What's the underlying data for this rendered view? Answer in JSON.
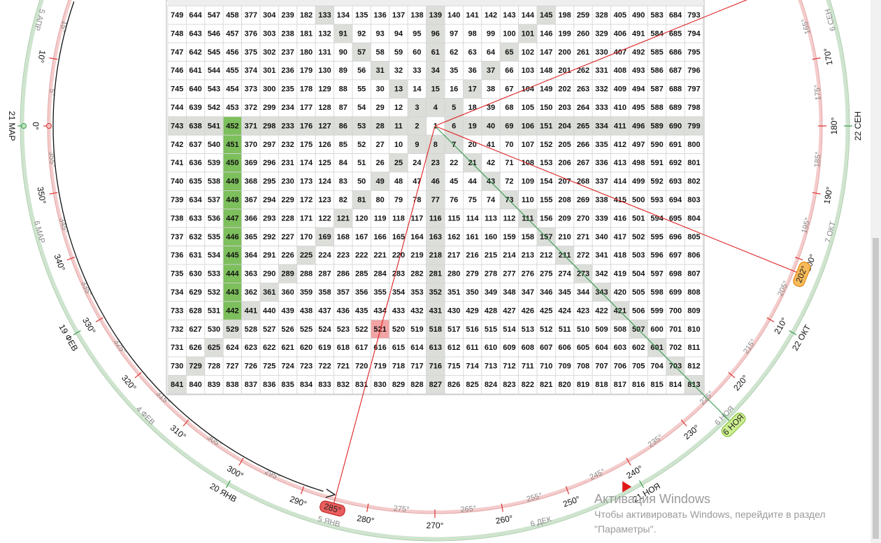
{
  "grid": {
    "rows": [
      [
        749,
        644,
        547,
        458,
        377,
        304,
        239,
        182,
        133,
        134,
        135,
        136,
        137,
        138,
        139,
        140,
        141,
        142,
        143,
        144,
        145,
        198,
        259,
        328,
        405,
        490,
        583,
        684,
        793
      ],
      [
        748,
        643,
        546,
        457,
        376,
        303,
        238,
        181,
        132,
        91,
        92,
        93,
        94,
        95,
        96,
        97,
        98,
        99,
        100,
        101,
        146,
        199,
        260,
        329,
        406,
        491,
        584,
        685,
        794
      ],
      [
        747,
        642,
        545,
        456,
        375,
        302,
        237,
        180,
        131,
        90,
        57,
        58,
        59,
        60,
        61,
        62,
        63,
        64,
        65,
        102,
        147,
        200,
        261,
        330,
        407,
        492,
        585,
        686,
        795
      ],
      [
        746,
        641,
        544,
        455,
        374,
        301,
        236,
        179,
        130,
        89,
        56,
        31,
        32,
        33,
        34,
        35,
        36,
        37,
        66,
        103,
        148,
        201,
        262,
        331,
        408,
        493,
        586,
        687,
        796
      ],
      [
        745,
        640,
        543,
        454,
        373,
        300,
        235,
        178,
        129,
        88,
        55,
        30,
        13,
        14,
        15,
        16,
        17,
        38,
        67,
        104,
        149,
        202,
        263,
        332,
        409,
        494,
        587,
        688,
        797
      ],
      [
        744,
        639,
        542,
        453,
        372,
        299,
        234,
        177,
        128,
        87,
        54,
        29,
        12,
        3,
        4,
        5,
        18,
        39,
        68,
        105,
        150,
        203,
        264,
        333,
        410,
        495,
        588,
        689,
        798
      ],
      [
        743,
        638,
        541,
        452,
        371,
        298,
        233,
        176,
        127,
        86,
        53,
        28,
        11,
        2,
        1,
        6,
        19,
        40,
        69,
        106,
        151,
        204,
        265,
        334,
        411,
        496,
        589,
        690,
        799
      ],
      [
        742,
        637,
        540,
        451,
        370,
        297,
        232,
        175,
        126,
        85,
        52,
        27,
        10,
        9,
        8,
        7,
        20,
        41,
        70,
        107,
        152,
        205,
        266,
        335,
        412,
        497,
        590,
        691,
        800
      ],
      [
        741,
        636,
        539,
        450,
        369,
        296,
        231,
        174,
        125,
        84,
        51,
        26,
        25,
        24,
        23,
        22,
        21,
        42,
        71,
        108,
        153,
        206,
        267,
        336,
        413,
        498,
        591,
        692,
        801
      ],
      [
        740,
        635,
        538,
        449,
        368,
        295,
        230,
        173,
        124,
        83,
        50,
        49,
        48,
        47,
        46,
        45,
        44,
        43,
        72,
        109,
        154,
        207,
        268,
        337,
        414,
        499,
        592,
        693,
        802
      ],
      [
        739,
        634,
        537,
        448,
        367,
        294,
        229,
        172,
        123,
        82,
        81,
        80,
        79,
        78,
        77,
        76,
        75,
        74,
        73,
        110,
        155,
        208,
        269,
        338,
        415,
        500,
        593,
        694,
        803
      ],
      [
        738,
        633,
        536,
        447,
        366,
        293,
        228,
        171,
        122,
        121,
        120,
        119,
        118,
        117,
        116,
        115,
        114,
        113,
        112,
        111,
        156,
        209,
        270,
        339,
        416,
        501,
        594,
        695,
        804
      ],
      [
        737,
        632,
        535,
        446,
        365,
        292,
        227,
        170,
        169,
        168,
        167,
        166,
        165,
        164,
        163,
        162,
        161,
        160,
        159,
        158,
        157,
        210,
        271,
        340,
        417,
        502,
        595,
        696,
        805
      ],
      [
        736,
        631,
        534,
        445,
        364,
        291,
        226,
        225,
        224,
        223,
        222,
        221,
        220,
        219,
        218,
        217,
        216,
        215,
        214,
        213,
        212,
        211,
        272,
        341,
        418,
        503,
        596,
        697,
        806
      ],
      [
        735,
        630,
        533,
        444,
        363,
        290,
        289,
        288,
        287,
        286,
        285,
        284,
        283,
        282,
        281,
        280,
        279,
        278,
        277,
        276,
        275,
        274,
        273,
        342,
        419,
        504,
        597,
        698,
        807
      ],
      [
        734,
        629,
        532,
        443,
        362,
        361,
        360,
        359,
        358,
        357,
        356,
        355,
        354,
        353,
        352,
        351,
        350,
        349,
        348,
        347,
        346,
        345,
        344,
        343,
        420,
        505,
        598,
        699,
        808
      ],
      [
        733,
        628,
        531,
        442,
        441,
        440,
        439,
        438,
        437,
        436,
        435,
        434,
        433,
        432,
        431,
        430,
        429,
        428,
        427,
        426,
        425,
        424,
        423,
        422,
        421,
        506,
        599,
        700,
        809
      ],
      [
        732,
        627,
        530,
        529,
        528,
        527,
        526,
        525,
        524,
        523,
        522,
        521,
        520,
        519,
        518,
        517,
        516,
        515,
        514,
        513,
        512,
        511,
        510,
        509,
        508,
        507,
        600,
        701,
        810
      ],
      [
        731,
        626,
        625,
        624,
        623,
        622,
        621,
        620,
        619,
        618,
        617,
        616,
        615,
        614,
        613,
        612,
        611,
        610,
        609,
        608,
        607,
        606,
        605,
        604,
        603,
        602,
        601,
        702,
        811
      ],
      [
        730,
        729,
        728,
        727,
        726,
        725,
        724,
        723,
        722,
        721,
        720,
        719,
        718,
        717,
        716,
        715,
        714,
        713,
        712,
        711,
        710,
        709,
        708,
        707,
        706,
        705,
        704,
        703,
        812
      ],
      [
        841,
        840,
        839,
        838,
        837,
        836,
        835,
        834,
        833,
        832,
        831,
        830,
        829,
        828,
        827,
        826,
        825,
        824,
        823,
        822,
        821,
        820,
        819,
        818,
        817,
        816,
        815,
        814,
        813
      ]
    ]
  },
  "dial": {
    "major": [
      {
        "value": 10,
        "label": "10°"
      },
      {
        "value": 0,
        "label": "0°"
      },
      {
        "value": 350,
        "label": "350°"
      },
      {
        "value": 340,
        "label": "340°"
      },
      {
        "value": 330,
        "label": "330°"
      },
      {
        "value": 320,
        "label": "320°"
      },
      {
        "value": 310,
        "label": "310°"
      },
      {
        "value": 300,
        "label": "300°"
      },
      {
        "value": 290,
        "label": "290°"
      },
      {
        "value": 280,
        "label": "280°"
      },
      {
        "value": 270,
        "label": "270°"
      },
      {
        "value": 260,
        "label": "260°"
      },
      {
        "value": 250,
        "label": "250°"
      },
      {
        "value": 240,
        "label": "240°"
      },
      {
        "value": 230,
        "label": "230°"
      },
      {
        "value": 220,
        "label": "220°"
      },
      {
        "value": 210,
        "label": "210°"
      },
      {
        "value": 200,
        "label": "200°"
      },
      {
        "value": 190,
        "label": "190°"
      },
      {
        "value": 180,
        "label": "180°"
      },
      {
        "value": 170,
        "label": "170°"
      }
    ],
    "minor": [
      {
        "value": 15,
        "label": "15°"
      },
      {
        "value": 5,
        "label": "5°"
      },
      {
        "value": 355,
        "label": "355°"
      },
      {
        "value": 345,
        "label": "345°"
      },
      {
        "value": 335,
        "label": "335°"
      },
      {
        "value": 325,
        "label": "325°"
      },
      {
        "value": 315,
        "label": "315°"
      },
      {
        "value": 305,
        "label": "305°"
      },
      {
        "value": 295,
        "label": "295°"
      },
      {
        "value": 275,
        "label": "275°"
      },
      {
        "value": 265,
        "label": "265°"
      },
      {
        "value": 255,
        "label": "255°"
      },
      {
        "value": 245,
        "label": "245°"
      },
      {
        "value": 235,
        "label": "235°"
      },
      {
        "value": 225,
        "label": "225°"
      },
      {
        "value": 215,
        "label": "215°"
      },
      {
        "value": 205,
        "label": "205°"
      },
      {
        "value": 195,
        "label": "195°"
      },
      {
        "value": 185,
        "label": "185°"
      },
      {
        "value": 175,
        "label": "175°"
      },
      {
        "value": 165,
        "label": "165°"
      }
    ],
    "dates": [
      "21 МАР",
      "5 АПР",
      "6 МАР",
      "19 ФЕВ",
      "4 ФЕВ",
      "20 ЯНВ",
      "5 ЯНВ",
      "6 ДЕК",
      "21 НОЯ",
      "6 НОЯ",
      "22 ОКТ",
      "7 ОКТ",
      "22 СЕН",
      "6 СЕН"
    ],
    "markers": [
      {
        "value": 285,
        "label": "285°"
      },
      {
        "value": 202,
        "label": "202°"
      }
    ],
    "date_marker": "6 НОЯ"
  },
  "watermark": {
    "title": "Активация Windows",
    "line1": "Чтобы активировать Windows, перейдите в раздел",
    "line2": "\"Параметры\"."
  }
}
